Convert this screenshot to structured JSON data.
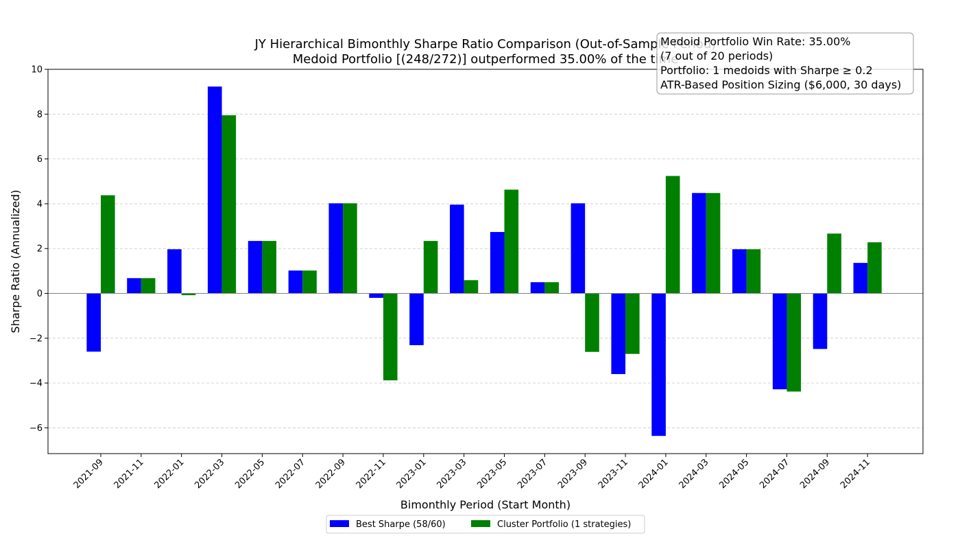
{
  "chart_data": {
    "type": "bar",
    "title": "JY Hierarchical Bimonthly Sharpe Ratio Comparison (Out-of-Sample Period)",
    "subtitle": "Medoid Portfolio [(248/272)] outperformed 35.00% of the time",
    "xlabel": "Bimonthly Period (Start Month)",
    "ylabel": "Sharpe Ratio (Annualized)",
    "ylim": [
      -7.15,
      10
    ],
    "yticks": [
      -6,
      -4,
      -2,
      0,
      2,
      4,
      6,
      8,
      10
    ],
    "ytick_labels": [
      "−6",
      "−4",
      "−2",
      "0",
      "2",
      "4",
      "6",
      "8",
      "10"
    ],
    "grid": true,
    "legend_position": "bottom-center",
    "categories": [
      "2021-09",
      "2021-11",
      "2022-01",
      "2022-03",
      "2022-05",
      "2022-07",
      "2022-09",
      "2022-11",
      "2023-01",
      "2023-03",
      "2023-05",
      "2023-07",
      "2023-09",
      "2023-11",
      "2024-01",
      "2024-03",
      "2024-05",
      "2024-07",
      "2024-09",
      "2024-11"
    ],
    "series": [
      {
        "name": "Best Sharpe (58/60)",
        "color": "#0000ff",
        "values": [
          -2.6,
          0.68,
          1.97,
          9.23,
          2.34,
          1.02,
          4.02,
          -0.2,
          -2.31,
          3.96,
          2.74,
          0.5,
          4.02,
          -3.6,
          -6.36,
          4.48,
          1.97,
          -4.28,
          -2.48,
          1.36
        ]
      },
      {
        "name": "Cluster Portfolio (1 strategies)",
        "color": "#008000",
        "values": [
          4.38,
          0.68,
          -0.08,
          7.95,
          2.34,
          1.02,
          4.02,
          -3.88,
          2.34,
          0.59,
          4.63,
          0.5,
          -2.61,
          -2.7,
          5.24,
          4.48,
          1.97,
          -4.38,
          2.67,
          2.28
        ]
      }
    ],
    "info_box": [
      "Medoid Portfolio Win Rate: 35.00%",
      "(7 out of 20 periods)",
      "Portfolio: 1 medoids with Sharpe ≥ 0.2",
      "ATR-Based Position Sizing ($6,000, 30 days)"
    ]
  }
}
